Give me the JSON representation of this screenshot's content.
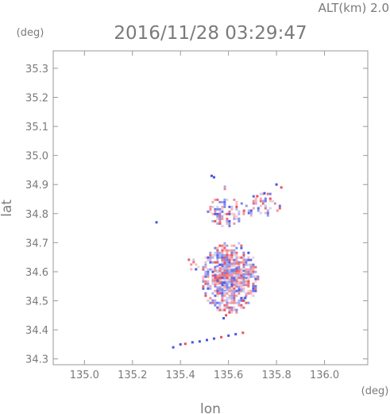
{
  "chart_data": {
    "type": "scatter",
    "title": "2016/11/28 03:29:47",
    "altitude_label": "ALT(km) 2.0",
    "xlabel": "lon",
    "ylabel": "lat",
    "x_unit": "(deg)",
    "y_unit": "(deg)",
    "xlim": [
      134.87,
      136.18
    ],
    "ylim": [
      34.28,
      35.36
    ],
    "x_ticks": [
      "135.0",
      "135.2",
      "135.4",
      "135.6",
      "135.8",
      "136.0"
    ],
    "y_ticks": [
      "34.3",
      "34.4",
      "34.5",
      "34.6",
      "34.7",
      "34.8",
      "34.9",
      "35.0",
      "35.1",
      "35.2",
      "35.3"
    ],
    "colors": {
      "positive": "#e8505a",
      "negative": "#4a55e0",
      "frame": "#9a9a9a",
      "text": "#7a7a7a"
    },
    "echo_regions": [
      {
        "lon": [
          135.48,
          135.72
        ],
        "lat": [
          34.46,
          34.71
        ],
        "density": 0.85
      },
      {
        "lon": [
          135.52,
          135.68
        ],
        "lat": [
          34.53,
          34.64
        ],
        "density": 0.9
      },
      {
        "lon": [
          135.5,
          135.66
        ],
        "lat": [
          34.76,
          34.86
        ],
        "density": 0.55
      },
      {
        "lon": [
          135.64,
          135.82
        ],
        "lat": [
          34.79,
          34.88
        ],
        "density": 0.35
      },
      {
        "lon": [
          135.55,
          135.6
        ],
        "lat": [
          34.86,
          34.93
        ],
        "density": 0.25
      },
      {
        "lon": [
          135.42,
          135.48
        ],
        "lat": [
          34.6,
          34.67
        ],
        "density": 0.3
      }
    ],
    "echo_points": [
      {
        "lon": 135.37,
        "lat": 34.34,
        "v": -1
      },
      {
        "lon": 135.4,
        "lat": 34.35,
        "v": -1
      },
      {
        "lon": 135.42,
        "lat": 34.352,
        "v": 1
      },
      {
        "lon": 135.45,
        "lat": 34.357,
        "v": -1
      },
      {
        "lon": 135.48,
        "lat": 34.36,
        "v": -1
      },
      {
        "lon": 135.51,
        "lat": 34.365,
        "v": -1
      },
      {
        "lon": 135.54,
        "lat": 34.37,
        "v": -1
      },
      {
        "lon": 135.57,
        "lat": 34.375,
        "v": 1
      },
      {
        "lon": 135.6,
        "lat": 34.38,
        "v": -1
      },
      {
        "lon": 135.63,
        "lat": 34.385,
        "v": -1
      },
      {
        "lon": 135.66,
        "lat": 34.39,
        "v": 1
      },
      {
        "lon": 135.3,
        "lat": 34.77,
        "v": -1
      },
      {
        "lon": 135.82,
        "lat": 34.89,
        "v": 1
      },
      {
        "lon": 135.8,
        "lat": 34.9,
        "v": -1
      },
      {
        "lon": 135.75,
        "lat": 34.87,
        "v": -1
      },
      {
        "lon": 135.72,
        "lat": 34.86,
        "v": 1
      },
      {
        "lon": 135.58,
        "lat": 34.44,
        "v": -1
      },
      {
        "lon": 135.59,
        "lat": 34.45,
        "v": 1
      },
      {
        "lon": 135.66,
        "lat": 34.5,
        "v": 1
      },
      {
        "lon": 135.67,
        "lat": 34.51,
        "v": -1
      },
      {
        "lon": 135.53,
        "lat": 34.93,
        "v": -1
      },
      {
        "lon": 135.54,
        "lat": 34.925,
        "v": -1
      }
    ]
  }
}
